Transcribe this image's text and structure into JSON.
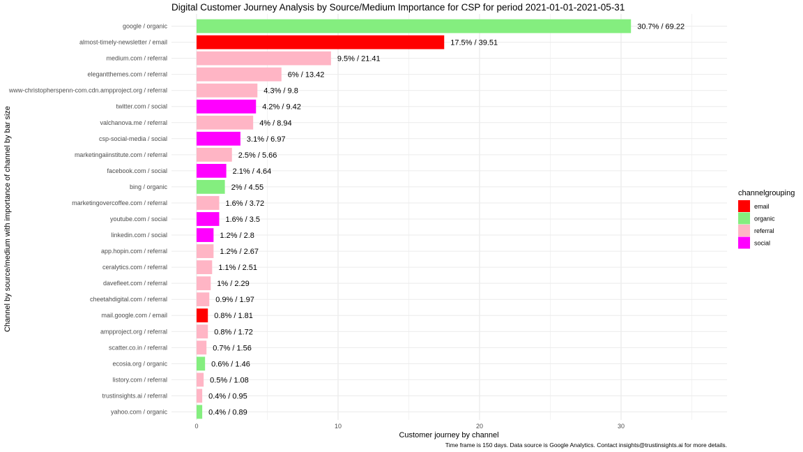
{
  "chart_data": {
    "type": "bar",
    "orientation": "horizontal",
    "title": "Digital Customer Journey Analysis by Source/Medium Importance for CSP for period 2021-01-01-2021-05-31",
    "xlabel": "Customer journey by channel",
    "ylabel": "Channel by source/medium with importance of channel by bar size",
    "caption": "Time frame is 150 days. Data source is Google Analytics. Contact insights@trustinsights.ai for more details.",
    "xlim": [
      0,
      37.5
    ],
    "xticks": [
      0,
      10,
      20,
      30
    ],
    "grid": true,
    "legend": {
      "title": "channelgrouping",
      "position": "right",
      "entries": [
        {
          "label": "email",
          "color": "#ff0000"
        },
        {
          "label": "organic",
          "color": "#84ee7f"
        },
        {
          "label": "referral",
          "color": "#ffb5c5"
        },
        {
          "label": "social",
          "color": "#ff00ff"
        }
      ]
    },
    "categories": [
      "google / organic",
      "almost-timely-newsletter / email",
      "medium.com / referral",
      "elegantthemes.com / referral",
      "www-christopherspenn-com.cdn.ampproject.org / referral",
      "twitter.com / social",
      "valchanova.me / referral",
      "csp-social-media / social",
      "marketingaiinstitute.com / referral",
      "facebook.com / social",
      "bing / organic",
      "marketingovercoffee.com / referral",
      "youtube.com / social",
      "linkedin.com / social",
      "app.hopin.com / referral",
      "ceralytics.com / referral",
      "davefleet.com / referral",
      "cheetahdigital.com / referral",
      "mail.google.com / email",
      "ampproject.org / referral",
      "scatter.co.in / referral",
      "ecosia.org / organic",
      "listory.com / referral",
      "trustinsights.ai / referral",
      "yahoo.com / organic"
    ],
    "values": [
      30.7,
      17.5,
      9.5,
      6.0,
      4.3,
      4.2,
      4.0,
      3.1,
      2.5,
      2.1,
      2.0,
      1.6,
      1.6,
      1.2,
      1.2,
      1.1,
      1.0,
      0.9,
      0.8,
      0.8,
      0.7,
      0.6,
      0.5,
      0.4,
      0.4
    ],
    "labels": [
      "30.7% / 69.22",
      "17.5% / 39.51",
      "9.5% / 21.41",
      "6% / 13.42",
      "4.3% / 9.8",
      "4.2% / 9.42",
      "4% / 8.94",
      "3.1% / 6.97",
      "2.5% / 5.66",
      "2.1% / 4.64",
      "2% / 4.55",
      "1.6% / 3.72",
      "1.6% / 3.5",
      "1.2% / 2.8",
      "1.2% / 2.67",
      "1.1% / 2.51",
      "1% / 2.29",
      "0.9% / 1.97",
      "0.8% / 1.81",
      "0.8% / 1.72",
      "0.7% / 1.56",
      "0.6% / 1.46",
      "0.5% / 1.08",
      "0.4% / 0.95",
      "0.4% / 0.89"
    ],
    "channels": [
      "organic",
      "email",
      "referral",
      "referral",
      "referral",
      "social",
      "referral",
      "social",
      "referral",
      "social",
      "organic",
      "referral",
      "social",
      "social",
      "referral",
      "referral",
      "referral",
      "referral",
      "email",
      "referral",
      "referral",
      "organic",
      "referral",
      "referral",
      "organic"
    ]
  }
}
